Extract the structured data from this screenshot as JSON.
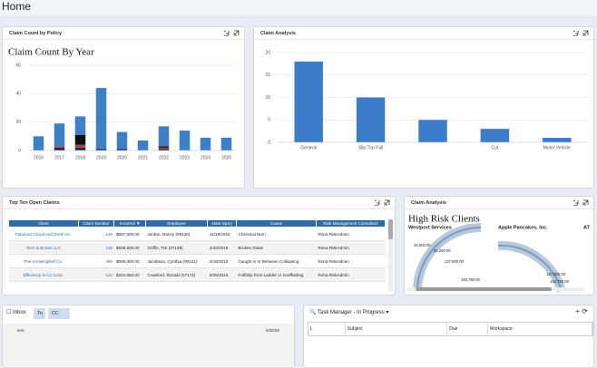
{
  "page": {
    "title": "Home"
  },
  "panels": {
    "claim_count": {
      "header": "Claim Count by Policy"
    },
    "claim_analysis": {
      "header": "Claim Analysis"
    },
    "open_claims": {
      "header": "Top Ten Open Claims",
      "columns": [
        "Client",
        "Claim Number",
        "Incurred ▼",
        "Employee",
        "Date Injury",
        "Cause",
        "Risk Management Consultant"
      ],
      "rows": [
        [
          "Fabulous Cloud and Drink Inc.",
          "128",
          "$587,000.00",
          "Jordan, Danny (09120)",
          "11/18/2015",
          "Chemical Burn",
          "Rona RiskAdmin"
        ],
        [
          "Teen & Brown LLC",
          "118",
          "$508,500.00",
          "Griffin, Tim (07139)",
          "2/10/2015",
          "Broken Glass",
          "Rona RiskAdmin"
        ],
        [
          "The Arrowingleaf Co.",
          "469",
          "$500,000.00",
          "Jacobson, Cynthia (09121)",
          "2/18/2015",
          "Caught in or Between Collapsing",
          "Rona RiskAdmin"
        ],
        [
          "Efficiency In Co Corp.",
          "122",
          "$344,050.00",
          "Crawford, Ronald (07174)",
          "5/25/2015",
          "Fall/Slip from Ladder or Scaffolding",
          "Rona RiskAdmin"
        ]
      ]
    },
    "high_risk": {
      "header": "Claim Analysis",
      "title": "High Risk Clients",
      "gauges": [
        {
          "name": "Westport Services",
          "labels": [
            "25,000.00",
            "81,250.00",
            "137,500.00",
            "193,750.00"
          ]
        },
        {
          "name": "Apple Pancakes, Inc.",
          "labels": [
            "137,500.00",
            "193,750.00"
          ]
        },
        {
          "name": "AT"
        }
      ]
    },
    "inbox": {
      "title": "Inbox",
      "buttons": [
        "To",
        "CC"
      ],
      "rows": [
        [
          "test",
          "4/30/25"
        ]
      ]
    },
    "tasks": {
      "title": "Task Manager - In Progress",
      "columns": [
        "L",
        "Subject",
        "Due",
        "Workspace"
      ]
    }
  },
  "chart_data": [
    {
      "type": "bar",
      "stacked": true,
      "title": "Claim Count By Year",
      "categories": [
        "2016",
        "2017",
        "2018",
        "2019",
        "2020",
        "2021",
        "2022",
        "2023",
        "2024",
        "2025"
      ],
      "series": [
        {
          "color": "#1d2b57",
          "values": [
            0,
            2,
            2,
            1,
            1,
            0,
            1,
            0,
            0,
            0
          ]
        },
        {
          "color": "#c0392b",
          "values": [
            0,
            1,
            2,
            0,
            0,
            0,
            1,
            0,
            0,
            0
          ]
        },
        {
          "color": "#111111",
          "values": [
            0,
            0,
            7,
            0,
            0,
            0,
            1,
            0,
            0,
            0
          ]
        },
        {
          "color": "#3f7fc6",
          "values": [
            10,
            16,
            13,
            43,
            12,
            7,
            14,
            14,
            9,
            9
          ]
        }
      ],
      "ylim": [
        0,
        60
      ],
      "yticks": [
        0,
        20,
        40,
        60
      ],
      "grid": true
    },
    {
      "type": "bar",
      "categories": [
        "General",
        "Slip Trip Fall",
        null,
        "Cut",
        "Motor Vehicle"
      ],
      "values": [
        18,
        10,
        5,
        3,
        1
      ],
      "color": "#3d7cc9",
      "ylim": [
        0,
        20
      ],
      "yticks": [
        0,
        5,
        10,
        15,
        20
      ],
      "grid": true
    }
  ]
}
